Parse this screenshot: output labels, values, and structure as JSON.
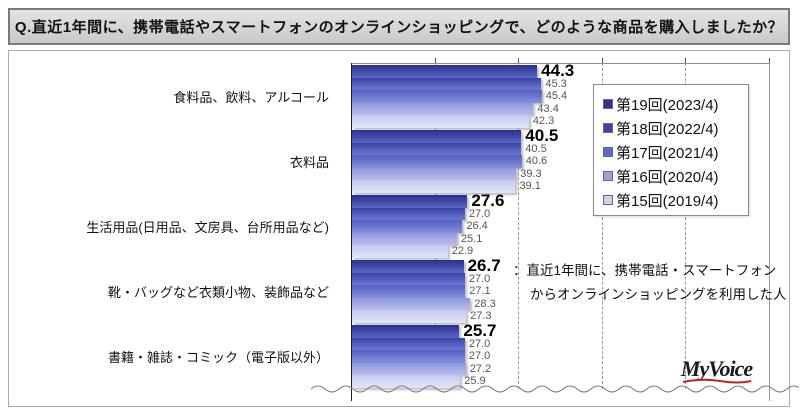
{
  "title": "Q.直近1年間に、携帯電話やスマートフォンのオンラインショッピングで、どのような商品を購入しましたか？",
  "legend": {
    "items": [
      {
        "label": "第19回(2023/4)",
        "color": "#30358f"
      },
      {
        "label": "第18回(2022/4)",
        "color": "#4049a8"
      },
      {
        "label": "第17回(2021/4)",
        "color": "#5a68c6"
      },
      {
        "label": "第16回(2020/4)",
        "color": "#99a1e0"
      },
      {
        "label": "第15回(2019/4)",
        "color": "#cdd1f0"
      }
    ]
  },
  "annotation": {
    "line1": "：直近1年間に、携帯電話・スマートフォン",
    "line2": "からオンラインショッピングを利用した人"
  },
  "logo_text": "MyVoice",
  "chart_data": {
    "type": "bar",
    "orientation": "horizontal",
    "title": "Q.直近1年間に、携帯電話やスマートフォンのオンラインショッピングで、どのような商品を購入しましたか？",
    "unit": "%",
    "xlim": [
      0,
      100
    ],
    "gridlines_percent": [
      20,
      40,
      60,
      80
    ],
    "grid": "dashed-vertical",
    "legend_position": "upper-right-inside",
    "categories": [
      "食料品、飲料、アルコール",
      "衣料品",
      "生活用品(日用品、文房具、台所用品など)",
      "靴・バッグなど衣類小物、装飾品など",
      "書籍・雑誌・コミック（電子版以外）"
    ],
    "series": [
      {
        "name": "第19回(2023/4)",
        "values": [
          44.3,
          40.5,
          27.6,
          26.7,
          25.7
        ]
      },
      {
        "name": "第18回(2022/4)",
        "values": [
          45.3,
          40.5,
          27.0,
          27.0,
          27.0
        ]
      },
      {
        "name": "第17回(2021/4)",
        "values": [
          45.4,
          40.6,
          26.4,
          27.1,
          27.0
        ]
      },
      {
        "name": "第16回(2020/4)",
        "values": [
          43.4,
          39.3,
          25.1,
          28.3,
          27.2
        ]
      },
      {
        "name": "第15回(2019/4)",
        "values": [
          42.3,
          39.1,
          22.9,
          27.3,
          25.9
        ]
      }
    ],
    "series_colors": [
      {
        "top": "#2b2f8c",
        "bottom": "#5b66c6"
      },
      {
        "top": "#3b44a6",
        "bottom": "#6d78d2"
      },
      {
        "top": "#5160c2",
        "bottom": "#8590dc"
      },
      {
        "top": "#8f98dc",
        "bottom": "#b6bdeb"
      },
      {
        "top": "#c5caef",
        "bottom": "#e2e5f7"
      }
    ],
    "note": "：直近1年間に、携帯電話・スマートフォンからオンラインショッピングを利用した人"
  },
  "accent": {
    "logo_underline": "#c32222",
    "axis": "#222222",
    "grid": "#9a9a9a"
  }
}
